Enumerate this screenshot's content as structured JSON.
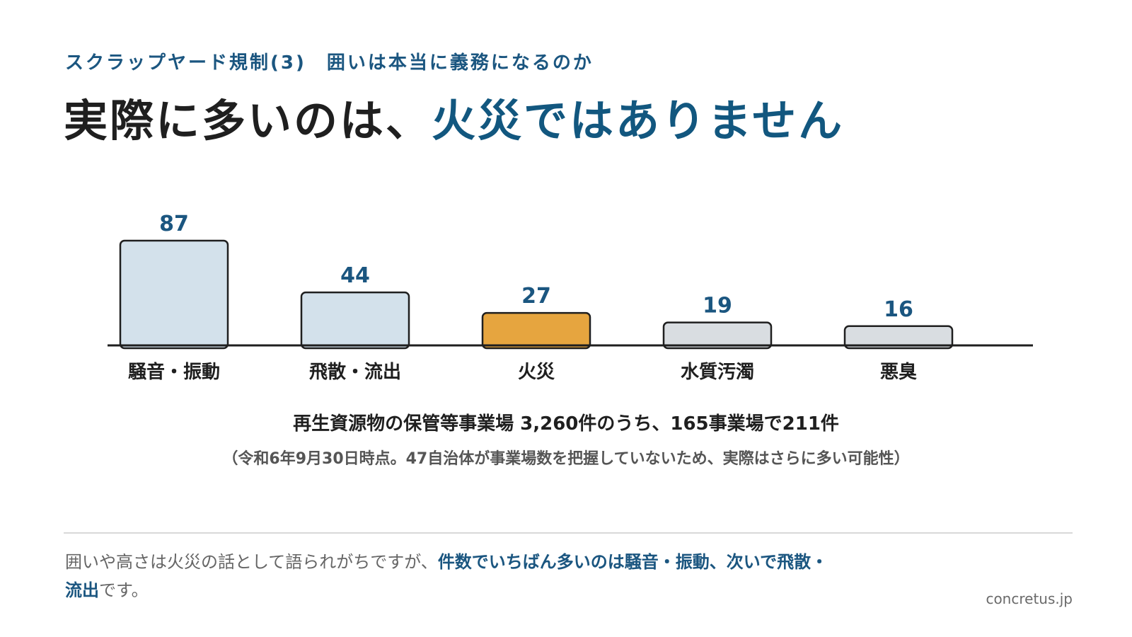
{
  "header": {
    "subtitle": "スクラップヤード規制(3)　囲いは本当に義務になるのか",
    "title_main": "実際に多いのは、",
    "title_accent": "火災ではありません"
  },
  "chart_data": {
    "type": "bar",
    "categories": [
      "騒音・振動",
      "飛散・流出",
      "火災",
      "水質汚濁",
      "悪臭"
    ],
    "values": [
      87,
      44,
      27,
      19,
      16
    ],
    "colors": [
      "#d3e1eb",
      "#d3e1eb",
      "#e6a53f",
      "#d9dde1",
      "#d9dde1"
    ],
    "ylim": [
      0,
      87
    ],
    "grid": false,
    "title": "",
    "xlabel": "",
    "ylabel": ""
  },
  "chart_summary": "再生資源物の保管等事業場 3,260件のうち、165事業場で211件",
  "chart_note": "（令和6年9月30日時点。47自治体が事業場数を把握していないため、実際はさらに多い可能性）",
  "footer": {
    "text_plain": "囲いや高さは火災の話として語られがちですが、",
    "text_highlight_1": "件数でいちばん多いのは騒音・振動、次いで飛散・",
    "text_highlight_2": "流出",
    "text_end": "です。"
  },
  "site": "concretus.jp",
  "colors": {
    "accent": "#12577f",
    "value_label": "#1b5680",
    "axis": "#1f1f1f"
  }
}
